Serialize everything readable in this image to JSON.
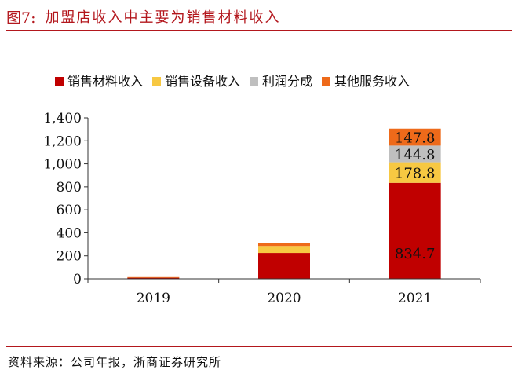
{
  "figure": {
    "label": "图7:",
    "title": "加盟店收入中主要为销售材料收入",
    "source": "资料来源：公司年报，浙商证券研究所"
  },
  "chart_data": {
    "type": "bar",
    "stacked": true,
    "categories": [
      "2019",
      "2020",
      "2021"
    ],
    "series": [
      {
        "name": "销售材料收入",
        "color": "#c00000",
        "values": [
          10,
          225,
          834.7
        ],
        "labels": [
          null,
          null,
          "834.7"
        ]
      },
      {
        "name": "销售设备收入",
        "color": "#f7c842",
        "values": [
          3,
          60,
          178.8
        ],
        "labels": [
          null,
          null,
          "178.8"
        ]
      },
      {
        "name": "利润分成",
        "color": "#bfbfbf",
        "values": [
          0,
          0,
          144.8
        ],
        "labels": [
          null,
          null,
          "144.8"
        ]
      },
      {
        "name": "其他服务收入",
        "color": "#ee6a1a",
        "values": [
          2,
          28,
          147.8
        ],
        "labels": [
          null,
          null,
          "147.8"
        ]
      }
    ],
    "ylim": [
      0,
      1400
    ],
    "yticks": [
      0,
      200,
      400,
      600,
      800,
      1000,
      1200,
      1400
    ],
    "ytick_labels": [
      "0",
      "200",
      "400",
      "600",
      "800",
      "1,000",
      "1,200",
      "1,400"
    ],
    "legend_position": "top",
    "grid": false
  }
}
